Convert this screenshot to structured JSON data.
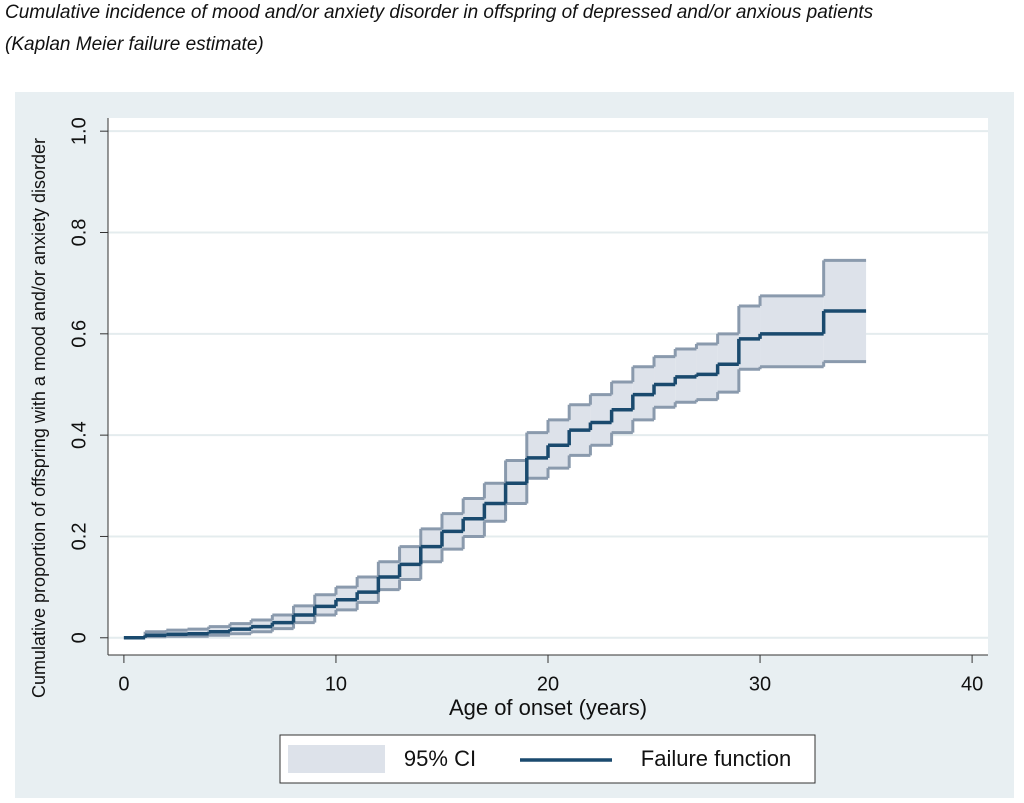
{
  "chart_data": {
    "type": "step",
    "title": "Cumulative incidence of mood and/or anxiety disorder in offspring of depressed and/or anxious patients",
    "subtitle": "(Kaplan Meier failure estimate)",
    "x_label": "Age of onset (years)",
    "y_label": "Cumulative proportion of offspring with a mood and/or anxiety disorder",
    "x": [
      0,
      1,
      2,
      3,
      4,
      5,
      6,
      7,
      8,
      9,
      10,
      11,
      12,
      13,
      14,
      15,
      16,
      17,
      18,
      19,
      20,
      21,
      22,
      23,
      24,
      25,
      26,
      27,
      28,
      29,
      30,
      33,
      35
    ],
    "series": [
      {
        "name": "95% CI",
        "color": "#dde2ea",
        "line_color": "#8a9aad",
        "upper": [
          0,
          0.012,
          0.015,
          0.017,
          0.022,
          0.028,
          0.035,
          0.045,
          0.063,
          0.085,
          0.1,
          0.12,
          0.15,
          0.18,
          0.215,
          0.245,
          0.275,
          0.305,
          0.35,
          0.405,
          0.43,
          0.46,
          0.48,
          0.505,
          0.535,
          0.555,
          0.57,
          0.58,
          0.6,
          0.655,
          0.675,
          0.745,
          0.745
        ],
        "lower": [
          0,
          0.002,
          0.003,
          0.003,
          0.005,
          0.008,
          0.012,
          0.018,
          0.03,
          0.045,
          0.055,
          0.07,
          0.095,
          0.115,
          0.15,
          0.175,
          0.2,
          0.23,
          0.265,
          0.315,
          0.335,
          0.36,
          0.38,
          0.405,
          0.43,
          0.455,
          0.465,
          0.47,
          0.485,
          0.53,
          0.535,
          0.545,
          0.545
        ]
      },
      {
        "name": "Failure function",
        "color": "#1a4a6e",
        "values": [
          0,
          0.005,
          0.007,
          0.008,
          0.012,
          0.017,
          0.022,
          0.03,
          0.045,
          0.062,
          0.075,
          0.09,
          0.12,
          0.145,
          0.18,
          0.21,
          0.235,
          0.265,
          0.305,
          0.355,
          0.38,
          0.41,
          0.425,
          0.45,
          0.48,
          0.5,
          0.515,
          0.52,
          0.54,
          0.59,
          0.6,
          0.645,
          0.645
        ]
      }
    ],
    "xlim": [
      -0.75,
      40.75
    ],
    "ylim": [
      -0.034,
      1.026
    ],
    "xticks": [
      0,
      10,
      20,
      30,
      40
    ],
    "yticks": [
      0,
      0.2,
      0.4,
      0.6,
      0.8,
      {
        "value": 1,
        "label": "1.0"
      }
    ],
    "grid": true
  }
}
